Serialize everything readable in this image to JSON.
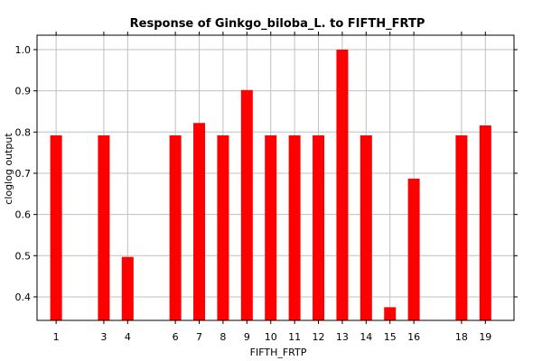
{
  "chart_data": {
    "type": "bar",
    "title": "Response of Ginkgo_biloba_L. to FIFTH_FRTP",
    "xlabel": "FIFTH_FRTP",
    "ylabel": "cloglog output",
    "categories": [
      "1",
      "3",
      "4",
      "6",
      "7",
      "8",
      "9",
      "10",
      "11",
      "12",
      "13",
      "14",
      "15",
      "16",
      "18",
      "19"
    ],
    "x": [
      1,
      3,
      4,
      6,
      7,
      8,
      9,
      10,
      11,
      12,
      13,
      14,
      15,
      16,
      18,
      19
    ],
    "values": [
      0.792,
      0.792,
      0.497,
      0.792,
      0.822,
      0.792,
      0.902,
      0.792,
      0.792,
      0.792,
      1.0,
      0.792,
      0.375,
      0.687,
      0.792,
      0.816
    ],
    "xlim": [
      0.2,
      20.2
    ],
    "ylim": [
      0.343,
      1.035
    ],
    "yticks": [
      "0.4",
      "0.5",
      "0.6",
      "0.7",
      "0.8",
      "0.9",
      "1.0"
    ],
    "ytick_values": [
      0.4,
      0.5,
      0.6,
      0.7,
      0.8,
      0.9,
      1.0
    ],
    "grid": true,
    "bar_color": "#ff0000",
    "grid_color": "#c0c0c0"
  }
}
